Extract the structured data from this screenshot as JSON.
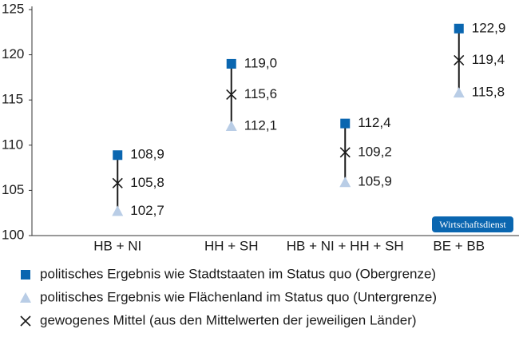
{
  "chart_data": {
    "type": "range",
    "categories": [
      "HB + NI",
      "HH + SH",
      "HB + NI + HH + SH",
      "BE + BB"
    ],
    "series": [
      {
        "name": "politisches Ergebnis wie Stadtstaaten im Status quo (Obergrenze)",
        "color": "#0a66b0",
        "marker": "square",
        "values": [
          108.9,
          119.0,
          112.4,
          122.9
        ],
        "value_labels": [
          "108,9",
          "119,0",
          "112,4",
          "122,9"
        ]
      },
      {
        "name": "politisches Ergebnis wie Flächenland im Status quo (Untergrenze)",
        "color": "#b9cde6",
        "marker": "triangle",
        "values": [
          102.7,
          112.1,
          105.9,
          115.8
        ],
        "value_labels": [
          "102,7",
          "112,1",
          "105,9",
          "115,8"
        ]
      },
      {
        "name": "gewogenes Mittel (aus den Mittelwerten der jeweiligen Länder)",
        "color": "#1a1a1a",
        "marker": "x",
        "values": [
          105.8,
          115.6,
          109.2,
          119.4
        ],
        "value_labels": [
          "105,8",
          "115,6",
          "109,2",
          "119,4"
        ]
      }
    ],
    "ylim": [
      100,
      125
    ],
    "yticks": [
      100,
      105,
      110,
      115,
      120,
      125
    ],
    "annotation": "Wirtschaftsdienst"
  }
}
